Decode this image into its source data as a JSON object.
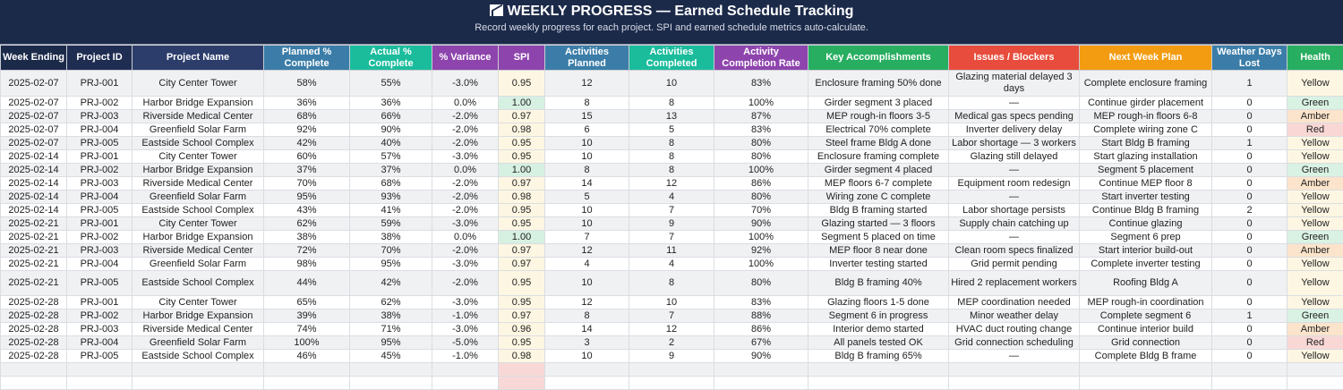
{
  "title": "WEEKLY PROGRESS — Earned Schedule Tracking",
  "subtitle": "Record weekly progress for each project. SPI and earned schedule metrics auto-calculate.",
  "title_icon": "chart-up-icon",
  "columns": [
    {
      "label": "Week Ending",
      "color": "#1c2a4a"
    },
    {
      "label": "Project ID",
      "color": "#1f2d52"
    },
    {
      "label": "Project Name",
      "color": "#2c3d6b"
    },
    {
      "label": "Planned % Complete",
      "color": "#3b7da8"
    },
    {
      "label": "Actual % Complete",
      "color": "#1abc9c"
    },
    {
      "label": "% Variance",
      "color": "#8e44ad"
    },
    {
      "label": "SPI",
      "color": "#8e44ad"
    },
    {
      "label": "Activities Planned",
      "color": "#3b7da8"
    },
    {
      "label": "Activities Completed",
      "color": "#1abc9c"
    },
    {
      "label": "Activity Completion Rate",
      "color": "#8e44ad"
    },
    {
      "label": "Key Accomplishments",
      "color": "#27ae60"
    },
    {
      "label": "Issues / Blockers",
      "color": "#e74c3c"
    },
    {
      "label": "Next Week Plan",
      "color": "#f39c12"
    },
    {
      "label": "Weather Days Lost",
      "color": "#3b7da8"
    },
    {
      "label": "Health",
      "color": "#27ae60"
    }
  ],
  "rows": [
    [
      "2025-02-07",
      "PRJ-001",
      "City Center Tower",
      "58%",
      "55%",
      "-3.0%",
      "0.95",
      "12",
      "10",
      "83%",
      "Enclosure framing 50% done",
      "Glazing material delayed 3 days",
      "Complete enclosure framing",
      "1",
      "Yellow"
    ],
    [
      "2025-02-07",
      "PRJ-002",
      "Harbor Bridge Expansion",
      "36%",
      "36%",
      "0.0%",
      "1.00",
      "8",
      "8",
      "100%",
      "Girder segment 3 placed",
      "—",
      "Continue girder placement",
      "0",
      "Green"
    ],
    [
      "2025-02-07",
      "PRJ-003",
      "Riverside Medical Center",
      "68%",
      "66%",
      "-2.0%",
      "0.97",
      "15",
      "13",
      "87%",
      "MEP rough-in floors 3-5",
      "Medical gas specs pending",
      "MEP rough-in floors 6-8",
      "0",
      "Amber"
    ],
    [
      "2025-02-07",
      "PRJ-004",
      "Greenfield Solar Farm",
      "92%",
      "90%",
      "-2.0%",
      "0.98",
      "6",
      "5",
      "83%",
      "Electrical 70% complete",
      "Inverter delivery delay",
      "Complete wiring zone C",
      "0",
      "Red"
    ],
    [
      "2025-02-07",
      "PRJ-005",
      "Eastside School Complex",
      "42%",
      "40%",
      "-2.0%",
      "0.95",
      "10",
      "8",
      "80%",
      "Steel frame Bldg A done",
      "Labor shortage — 3 workers",
      "Start Bldg B framing",
      "1",
      "Yellow"
    ],
    [
      "2025-02-14",
      "PRJ-001",
      "City Center Tower",
      "60%",
      "57%",
      "-3.0%",
      "0.95",
      "10",
      "8",
      "80%",
      "Enclosure framing complete",
      "Glazing still delayed",
      "Start glazing installation",
      "0",
      "Yellow"
    ],
    [
      "2025-02-14",
      "PRJ-002",
      "Harbor Bridge Expansion",
      "37%",
      "37%",
      "0.0%",
      "1.00",
      "8",
      "8",
      "100%",
      "Girder segment 4 placed",
      "—",
      "Segment 5 placement",
      "0",
      "Green"
    ],
    [
      "2025-02-14",
      "PRJ-003",
      "Riverside Medical Center",
      "70%",
      "68%",
      "-2.0%",
      "0.97",
      "14",
      "12",
      "86%",
      "MEP floors 6-7 complete",
      "Equipment room redesign",
      "Continue MEP floor 8",
      "0",
      "Amber"
    ],
    [
      "2025-02-14",
      "PRJ-004",
      "Greenfield Solar Farm",
      "95%",
      "93%",
      "-2.0%",
      "0.98",
      "5",
      "4",
      "80%",
      "Wiring zone C complete",
      "—",
      "Start inverter testing",
      "0",
      "Yellow"
    ],
    [
      "2025-02-14",
      "PRJ-005",
      "Eastside School Complex",
      "43%",
      "41%",
      "-2.0%",
      "0.95",
      "10",
      "7",
      "70%",
      "Bldg B framing started",
      "Labor shortage persists",
      "Continue Bldg B framing",
      "2",
      "Yellow"
    ],
    [
      "2025-02-21",
      "PRJ-001",
      "City Center Tower",
      "62%",
      "59%",
      "-3.0%",
      "0.95",
      "10",
      "9",
      "90%",
      "Glazing started — 3 floors",
      "Supply chain catching up",
      "Continue glazing",
      "0",
      "Yellow"
    ],
    [
      "2025-02-21",
      "PRJ-002",
      "Harbor Bridge Expansion",
      "38%",
      "38%",
      "0.0%",
      "1.00",
      "7",
      "7",
      "100%",
      "Segment 5 placed on time",
      "—",
      "Segment 6 prep",
      "0",
      "Green"
    ],
    [
      "2025-02-21",
      "PRJ-003",
      "Riverside Medical Center",
      "72%",
      "70%",
      "-2.0%",
      "0.97",
      "12",
      "11",
      "92%",
      "MEP floor 8 near done",
      "Clean room specs finalized",
      "Start interior build-out",
      "0",
      "Amber"
    ],
    [
      "2025-02-21",
      "PRJ-004",
      "Greenfield Solar Farm",
      "98%",
      "95%",
      "-3.0%",
      "0.97",
      "4",
      "4",
      "100%",
      "Inverter testing started",
      "Grid permit pending",
      "Complete inverter testing",
      "0",
      "Yellow"
    ],
    [
      "2025-02-21",
      "PRJ-005",
      "Eastside School Complex",
      "44%",
      "42%",
      "-2.0%",
      "0.95",
      "10",
      "8",
      "80%",
      "Bldg B framing 40%",
      "Hired 2 replacement workers",
      "Roofing Bldg A",
      "0",
      "Yellow"
    ],
    [
      "2025-02-28",
      "PRJ-001",
      "City Center Tower",
      "65%",
      "62%",
      "-3.0%",
      "0.95",
      "12",
      "10",
      "83%",
      "Glazing floors 1-5 done",
      "MEP coordination needed",
      "MEP rough-in coordination",
      "0",
      "Yellow"
    ],
    [
      "2025-02-28",
      "PRJ-002",
      "Harbor Bridge Expansion",
      "39%",
      "38%",
      "-1.0%",
      "0.97",
      "8",
      "7",
      "88%",
      "Segment 6 in progress",
      "Minor weather delay",
      "Complete segment 6",
      "1",
      "Green"
    ],
    [
      "2025-02-28",
      "PRJ-003",
      "Riverside Medical Center",
      "74%",
      "71%",
      "-3.0%",
      "0.96",
      "14",
      "12",
      "86%",
      "Interior demo started",
      "HVAC duct routing change",
      "Continue interior build",
      "0",
      "Amber"
    ],
    [
      "2025-02-28",
      "PRJ-004",
      "Greenfield Solar Farm",
      "100%",
      "95%",
      "-5.0%",
      "0.95",
      "3",
      "2",
      "67%",
      "All panels tested OK",
      "Grid connection scheduling",
      "Grid connection",
      "0",
      "Red"
    ],
    [
      "2025-02-28",
      "PRJ-005",
      "Eastside School Complex",
      "46%",
      "45%",
      "-1.0%",
      "0.98",
      "10",
      "9",
      "90%",
      "Bldg B framing 65%",
      "—",
      "Complete Bldg B frame",
      "0",
      "Yellow"
    ]
  ],
  "empty_rows": 2
}
